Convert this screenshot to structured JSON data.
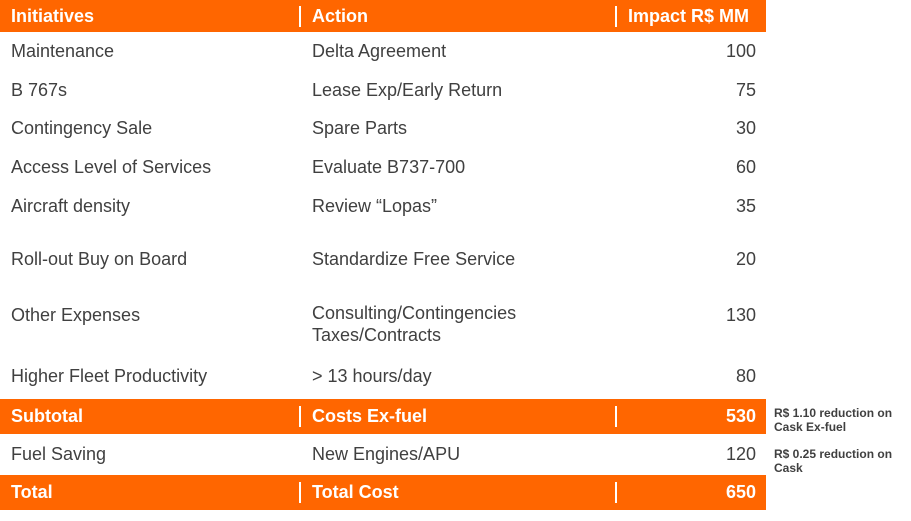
{
  "header": {
    "col1": "Initiatives",
    "col2": "Action",
    "col3": "Impact R$ MM"
  },
  "rows": [
    {
      "initiative": "Maintenance",
      "action": "Delta Agreement",
      "impact": "100"
    },
    {
      "initiative": "B 767s",
      "action": "Lease Exp/Early Return",
      "impact": "75"
    },
    {
      "initiative": "Contingency Sale",
      "action": "Spare Parts",
      "impact": "30"
    },
    {
      "initiative": "Access Level of Services",
      "action": "Evaluate B737-700",
      "impact": "60"
    },
    {
      "initiative": "Aircraft density",
      "action": "Review “Lopas”",
      "impact": "35"
    },
    {
      "initiative": "Roll-out Buy on Board",
      "action": "Standardize Free Service",
      "impact": "20"
    },
    {
      "initiative": "Other Expenses",
      "action_line1": "Consulting/Contingencies",
      "action_line2": "Taxes/Contracts",
      "impact": "130"
    },
    {
      "initiative": "Higher Fleet Productivity",
      "action": "> 13 hours/day",
      "impact": "80"
    }
  ],
  "subtotal": {
    "label": "Subtotal",
    "action": "Costs Ex-fuel",
    "impact": "530"
  },
  "fuel": {
    "label": "Fuel Saving",
    "action": "New Engines/APU",
    "impact": "120"
  },
  "total": {
    "label": "Total",
    "action": "Total Cost",
    "impact": "650"
  },
  "notes": {
    "subtotal_note": "R$ 1.10 reduction on Cask Ex-fuel",
    "fuel_note": "R$ 0.25 reduction on Cask"
  },
  "colors": {
    "accent": "#ff6600",
    "text": "#404040",
    "band": "#f2f2f2"
  }
}
